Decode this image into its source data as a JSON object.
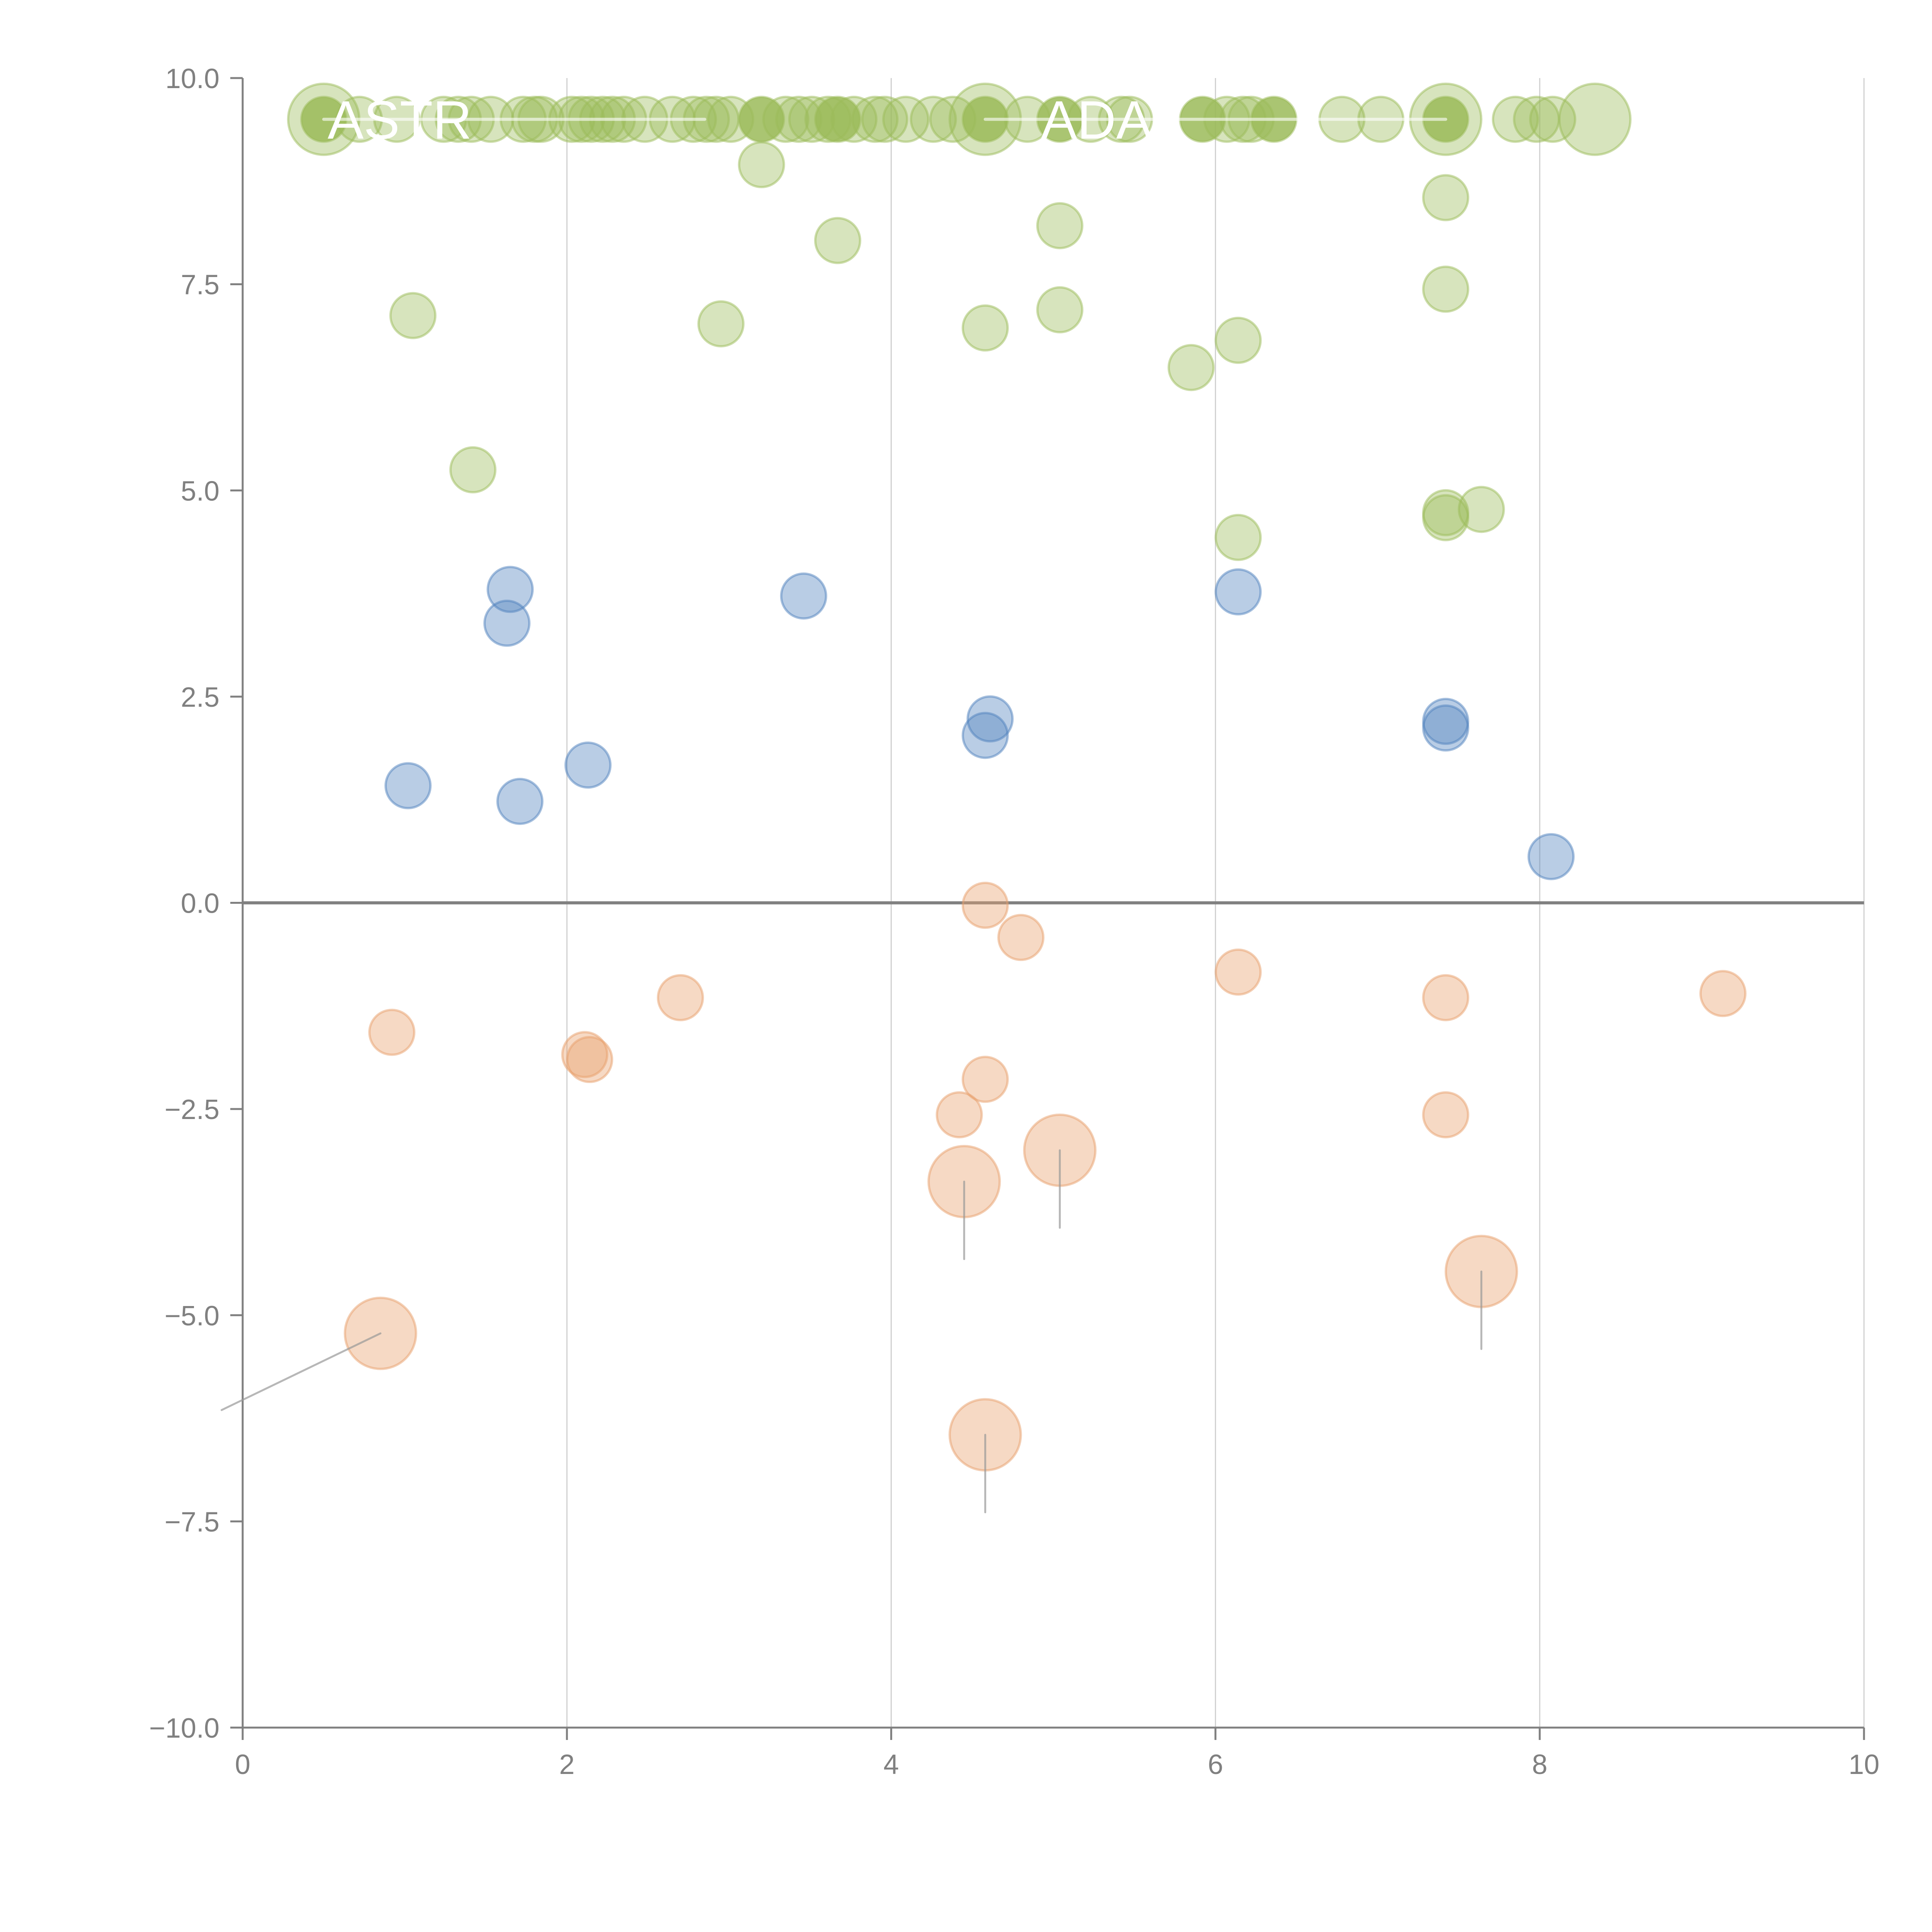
{
  "chart_data": {
    "type": "scatter",
    "title": "",
    "xlabel": "",
    "ylabel": "",
    "xlim": [
      0,
      10
    ],
    "ylim": [
      -10,
      10
    ],
    "x_ticks": [
      "0",
      "2",
      "4",
      "6",
      "8",
      "10"
    ],
    "y_ticks": [
      "−10.0",
      "−7.5",
      "−5.0",
      "−2.5",
      "0.0",
      "2.5",
      "5.0",
      "7.5",
      "10.0"
    ],
    "x_tick_values": [
      0,
      2,
      4,
      6,
      8,
      10
    ],
    "y_tick_values": [
      -10,
      -7.5,
      -5,
      -2.5,
      0,
      2.5,
      5,
      7.5,
      10
    ],
    "grid": "vertical",
    "zero_line": 0,
    "legend": "none",
    "colors": {
      "green": "#9bbb59",
      "blue": "#4f81bd",
      "orange": "#e8a06b",
      "axis": "#808080",
      "grid": "#d0d0d0"
    },
    "series": [
      {
        "name": "green",
        "points": [
          {
            "x": 0.5,
            "y": 9.5,
            "size": "large"
          },
          {
            "x": 0.5,
            "y": 9.5,
            "size": "small",
            "strong": true
          },
          {
            "x": 0.72,
            "y": 9.5
          },
          {
            "x": 0.95,
            "y": 9.5
          },
          {
            "x": 1.24,
            "y": 9.5
          },
          {
            "x": 1.33,
            "y": 9.5
          },
          {
            "x": 1.41,
            "y": 9.5
          },
          {
            "x": 1.53,
            "y": 9.5
          },
          {
            "x": 1.73,
            "y": 9.5
          },
          {
            "x": 1.8,
            "y": 9.5
          },
          {
            "x": 1.84,
            "y": 9.5
          },
          {
            "x": 2.03,
            "y": 9.5
          },
          {
            "x": 2.09,
            "y": 9.5
          },
          {
            "x": 2.15,
            "y": 9.5
          },
          {
            "x": 2.22,
            "y": 9.5
          },
          {
            "x": 2.28,
            "y": 9.5
          },
          {
            "x": 2.35,
            "y": 9.5
          },
          {
            "x": 2.48,
            "y": 9.5
          },
          {
            "x": 2.65,
            "y": 9.5
          },
          {
            "x": 2.78,
            "y": 9.5
          },
          {
            "x": 2.86,
            "y": 9.5
          },
          {
            "x": 2.92,
            "y": 9.5
          },
          {
            "x": 3.01,
            "y": 9.5
          },
          {
            "x": 3.2,
            "y": 9.5,
            "strong": true
          },
          {
            "x": 3.35,
            "y": 9.5
          },
          {
            "x": 3.43,
            "y": 9.5
          },
          {
            "x": 3.51,
            "y": 9.5
          },
          {
            "x": 3.61,
            "y": 9.5
          },
          {
            "x": 3.67,
            "y": 9.5,
            "strong": true
          },
          {
            "x": 3.77,
            "y": 9.5
          },
          {
            "x": 3.9,
            "y": 9.5
          },
          {
            "x": 3.96,
            "y": 9.5
          },
          {
            "x": 4.09,
            "y": 9.5
          },
          {
            "x": 4.26,
            "y": 9.5
          },
          {
            "x": 4.38,
            "y": 9.5
          },
          {
            "x": 4.58,
            "y": 9.5,
            "size": "large"
          },
          {
            "x": 4.58,
            "y": 9.5,
            "strong": true
          },
          {
            "x": 4.84,
            "y": 9.5
          },
          {
            "x": 5.04,
            "y": 9.5,
            "strong": true
          },
          {
            "x": 5.23,
            "y": 9.5
          },
          {
            "x": 5.42,
            "y": 9.5
          },
          {
            "x": 5.47,
            "y": 9.5
          },
          {
            "x": 5.92,
            "y": 9.5,
            "strong": true
          },
          {
            "x": 6.07,
            "y": 9.5
          },
          {
            "x": 6.17,
            "y": 9.5
          },
          {
            "x": 6.22,
            "y": 9.5
          },
          {
            "x": 6.36,
            "y": 9.5,
            "strong": true
          },
          {
            "x": 6.78,
            "y": 9.5
          },
          {
            "x": 7.02,
            "y": 9.5
          },
          {
            "x": 7.42,
            "y": 9.5,
            "size": "large"
          },
          {
            "x": 7.42,
            "y": 9.5,
            "strong": true
          },
          {
            "x": 7.85,
            "y": 9.5
          },
          {
            "x": 7.98,
            "y": 9.5
          },
          {
            "x": 8.08,
            "y": 9.5
          },
          {
            "x": 8.34,
            "y": 9.5,
            "size": "large"
          },
          {
            "x": 3.2,
            "y": 8.95
          },
          {
            "x": 3.67,
            "y": 8.03
          },
          {
            "x": 5.04,
            "y": 8.21
          },
          {
            "x": 7.42,
            "y": 8.55
          },
          {
            "x": 1.05,
            "y": 7.12
          },
          {
            "x": 2.95,
            "y": 7.02
          },
          {
            "x": 4.58,
            "y": 6.97
          },
          {
            "x": 5.04,
            "y": 7.19
          },
          {
            "x": 5.85,
            "y": 6.49
          },
          {
            "x": 6.14,
            "y": 6.82
          },
          {
            "x": 7.42,
            "y": 7.44
          },
          {
            "x": 1.42,
            "y": 5.25
          },
          {
            "x": 6.14,
            "y": 4.43
          },
          {
            "x": 7.42,
            "y": 4.67
          },
          {
            "x": 7.42,
            "y": 4.73
          },
          {
            "x": 7.64,
            "y": 4.77
          }
        ]
      },
      {
        "name": "blue",
        "points": [
          {
            "x": 1.02,
            "y": 1.42
          },
          {
            "x": 1.63,
            "y": 3.39
          },
          {
            "x": 1.65,
            "y": 3.8
          },
          {
            "x": 1.71,
            "y": 1.23
          },
          {
            "x": 2.13,
            "y": 1.67
          },
          {
            "x": 3.46,
            "y": 3.72
          },
          {
            "x": 4.58,
            "y": 2.03
          },
          {
            "x": 4.61,
            "y": 2.23
          },
          {
            "x": 6.14,
            "y": 3.77
          },
          {
            "x": 7.42,
            "y": 2.12
          },
          {
            "x": 7.42,
            "y": 2.2
          },
          {
            "x": 8.07,
            "y": 0.56
          }
        ]
      },
      {
        "name": "orange",
        "points": [
          {
            "x": 0.92,
            "y": -1.57
          },
          {
            "x": 2.11,
            "y": -1.84
          },
          {
            "x": 2.14,
            "y": -1.9
          },
          {
            "x": 2.7,
            "y": -1.15
          },
          {
            "x": 4.58,
            "y": -0.03
          },
          {
            "x": 4.8,
            "y": -0.42
          },
          {
            "x": 4.58,
            "y": -2.14
          },
          {
            "x": 4.42,
            "y": -2.57
          },
          {
            "x": 6.14,
            "y": -0.84
          },
          {
            "x": 7.42,
            "y": -1.15
          },
          {
            "x": 7.42,
            "y": -2.57
          },
          {
            "x": 9.13,
            "y": -1.1
          },
          {
            "x": 4.45,
            "y": -3.38,
            "size": "large"
          },
          {
            "x": 5.04,
            "y": -3.0,
            "size": "large"
          },
          {
            "x": 0.85,
            "y": -5.22,
            "size": "large"
          },
          {
            "x": 4.58,
            "y": -6.45,
            "size": "large"
          },
          {
            "x": 7.64,
            "y": -4.47,
            "size": "large"
          }
        ]
      }
    ],
    "annotations": [
      {
        "text": "ASTR",
        "x": 0.5,
        "y": 9.5
      },
      {
        "text": "ADA",
        "x": 4.9,
        "y": 9.5
      }
    ],
    "leader_lines": [
      {
        "from": [
          0.5,
          9.5
        ],
        "to": [
          2.85,
          9.5
        ]
      },
      {
        "from": [
          4.58,
          9.5
        ],
        "to": [
          7.42,
          9.5
        ]
      },
      {
        "from": [
          0.85,
          -5.22
        ],
        "to": [
          -0.13,
          -6.15
        ]
      },
      {
        "from": [
          4.45,
          -3.38
        ],
        "to": [
          4.45,
          -4.32
        ]
      },
      {
        "from": [
          5.04,
          -3.0
        ],
        "to": [
          5.04,
          -3.94
        ]
      },
      {
        "from": [
          4.58,
          -6.45
        ],
        "to": [
          4.58,
          -7.39
        ]
      },
      {
        "from": [
          7.64,
          -4.47
        ],
        "to": [
          7.64,
          -5.41
        ]
      }
    ]
  }
}
